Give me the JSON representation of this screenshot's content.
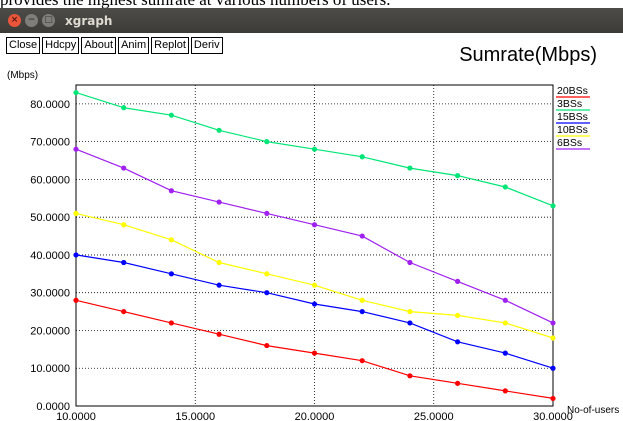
{
  "page": {
    "top_text": "provides the highest sumrate at various numbers of users."
  },
  "window": {
    "title": "xgraph"
  },
  "toolbar": {
    "buttons": [
      "Close",
      "Hdcpy",
      "About",
      "Anim",
      "Replot",
      "Deriv"
    ]
  },
  "colors": {
    "20BSs": "#ff0000",
    "3BSs": "#00e676",
    "15BSs": "#0000ff",
    "10BSs": "#ffff00",
    "6BSs": "#a020f0"
  },
  "chart_data": {
    "type": "line",
    "title": "Sumrate(Mbps)",
    "ylabel": "(Mbps)",
    "xlabel": "No-of-users",
    "xlim": [
      10,
      30
    ],
    "ylim": [
      0,
      85
    ],
    "grid": true,
    "legend_position": "right",
    "x_ticks": [
      "10.0000",
      "15.0000",
      "20.0000",
      "25.0000",
      "30.0000"
    ],
    "y_ticks": [
      "0.0000",
      "10.0000",
      "20.0000",
      "30.0000",
      "40.0000",
      "50.0000",
      "60.0000",
      "70.0000",
      "80.0000"
    ],
    "x": [
      10,
      12,
      14,
      16,
      18,
      20,
      22,
      24,
      26,
      28,
      30
    ],
    "series": [
      {
        "name": "20BSs",
        "color": "#ff0000",
        "values": [
          28,
          25,
          22,
          19,
          16,
          14,
          12,
          8,
          6,
          4,
          2
        ]
      },
      {
        "name": "3BSs",
        "color": "#00e676",
        "values": [
          83,
          79,
          77,
          73,
          70,
          68,
          66,
          63,
          61,
          58,
          53
        ]
      },
      {
        "name": "15BSs",
        "color": "#0000ff",
        "values": [
          40,
          38,
          35,
          32,
          30,
          27,
          25,
          22,
          17,
          14,
          10
        ]
      },
      {
        "name": "10BSs",
        "color": "#ffff00",
        "values": [
          51,
          48,
          44,
          38,
          35,
          32,
          28,
          25,
          24,
          22,
          18
        ]
      },
      {
        "name": "6BSs",
        "color": "#a020f0",
        "values": [
          68,
          63,
          57,
          54,
          51,
          48,
          45,
          38,
          33,
          28,
          22
        ]
      }
    ]
  }
}
